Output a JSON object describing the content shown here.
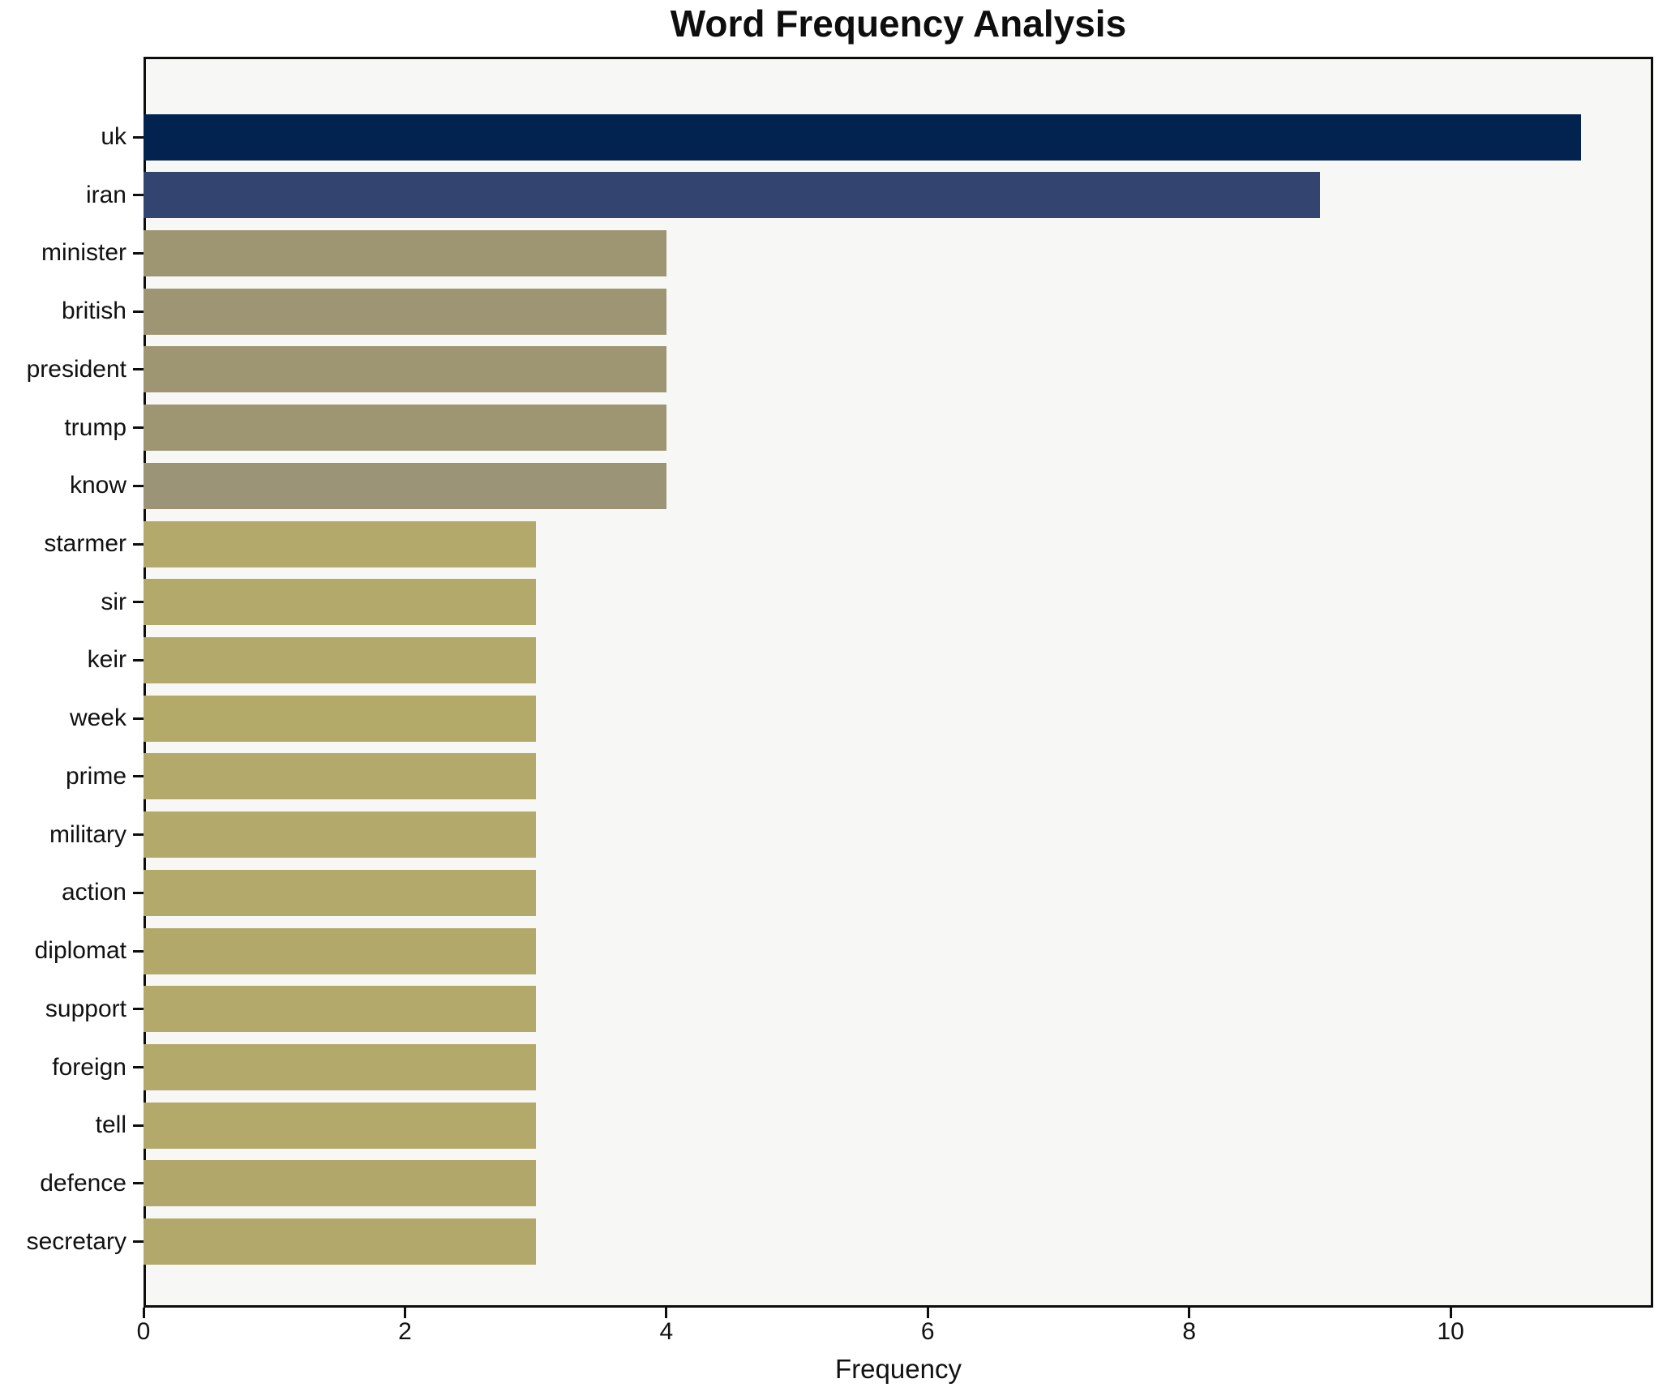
{
  "chart_data": {
    "type": "bar",
    "orientation": "horizontal",
    "title": "Word Frequency Analysis",
    "xlabel": "Frequency",
    "ylabel": "",
    "categories": [
      "uk",
      "iran",
      "minister",
      "british",
      "president",
      "trump",
      "know",
      "starmer",
      "sir",
      "keir",
      "week",
      "prime",
      "military",
      "action",
      "diplomat",
      "support",
      "foreign",
      "tell",
      "defence",
      "secretary"
    ],
    "values": [
      11,
      9,
      4,
      4,
      4,
      4,
      4,
      3,
      3,
      3,
      3,
      3,
      3,
      3,
      3,
      3,
      3,
      3,
      3,
      3
    ],
    "bar_colors": [
      "#02234f",
      "#334470",
      "#9e9673",
      "#9d9573",
      "#9e9673",
      "#9e9673",
      "#9c9476",
      "#b2a96b",
      "#b3a96a",
      "#b3a96a",
      "#b3aa6a",
      "#b3a96a",
      "#b3a96a",
      "#b3a96a",
      "#b2a86a",
      "#b3a96a",
      "#b3a96a",
      "#b3a96a",
      "#b1a76b",
      "#b2a86b"
    ],
    "xlim": [
      0,
      11.55
    ],
    "xticks": [
      0,
      2,
      4,
      6,
      8,
      10
    ],
    "grid": false,
    "legend": "none",
    "plot_background": "#f7f7f6",
    "figure_background": "#ffffff",
    "spine_color": "#0d0d0d"
  }
}
